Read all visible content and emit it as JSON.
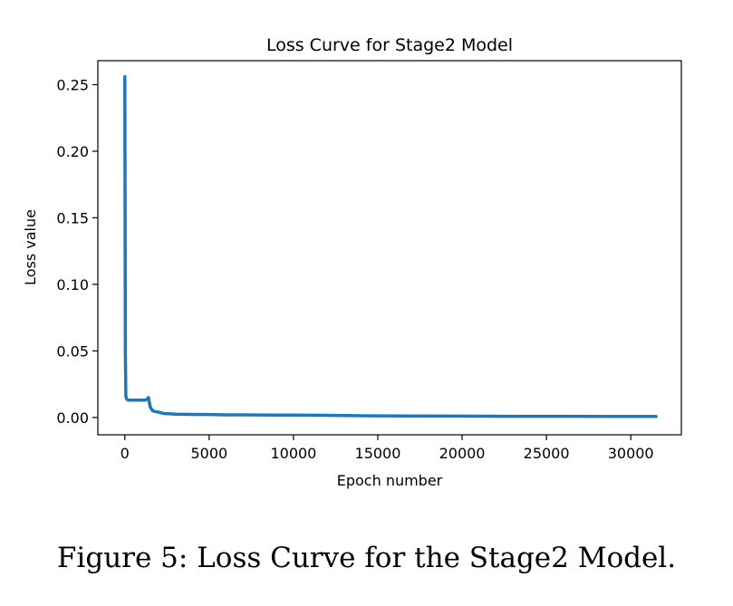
{
  "chart_data": {
    "type": "line",
    "title": "Loss Curve for Stage2 Model",
    "xlabel": "Epoch number",
    "ylabel": "Loss value",
    "xlim": [
      -1600,
      33000
    ],
    "ylim": [
      -0.013,
      0.268
    ],
    "xticks": [
      0,
      5000,
      10000,
      15000,
      20000,
      25000,
      30000
    ],
    "xtick_labels": [
      "0",
      "5000",
      "10000",
      "15000",
      "20000",
      "25000",
      "30000"
    ],
    "yticks": [
      0.0,
      0.05,
      0.1,
      0.15,
      0.2,
      0.25
    ],
    "ytick_labels": [
      "0.00",
      "0.05",
      "0.10",
      "0.15",
      "0.20",
      "0.25"
    ],
    "grid": false,
    "series": [
      {
        "color": "#1f77b4",
        "x": [
          0,
          30,
          60,
          100,
          200,
          400,
          800,
          1200,
          1350,
          1400,
          1500,
          1650,
          1800,
          2000,
          2300,
          2600,
          3000,
          4000,
          5000,
          6000,
          7000,
          8000,
          9000,
          10000,
          11000,
          12000,
          13000,
          14000,
          15000,
          17000,
          20000,
          23000,
          26000,
          29000,
          31500
        ],
        "y": [
          0.256,
          0.05,
          0.016,
          0.014,
          0.013,
          0.013,
          0.013,
          0.013,
          0.014,
          0.015,
          0.008,
          0.005,
          0.0045,
          0.004,
          0.003,
          0.0028,
          0.0025,
          0.0023,
          0.0022,
          0.002,
          0.002,
          0.0019,
          0.0018,
          0.0018,
          0.0017,
          0.0016,
          0.0015,
          0.0013,
          0.0012,
          0.0011,
          0.001,
          0.0009,
          0.0009,
          0.0008,
          0.0008
        ]
      }
    ]
  },
  "caption": "Figure 5: Loss Curve for the Stage2 Model."
}
